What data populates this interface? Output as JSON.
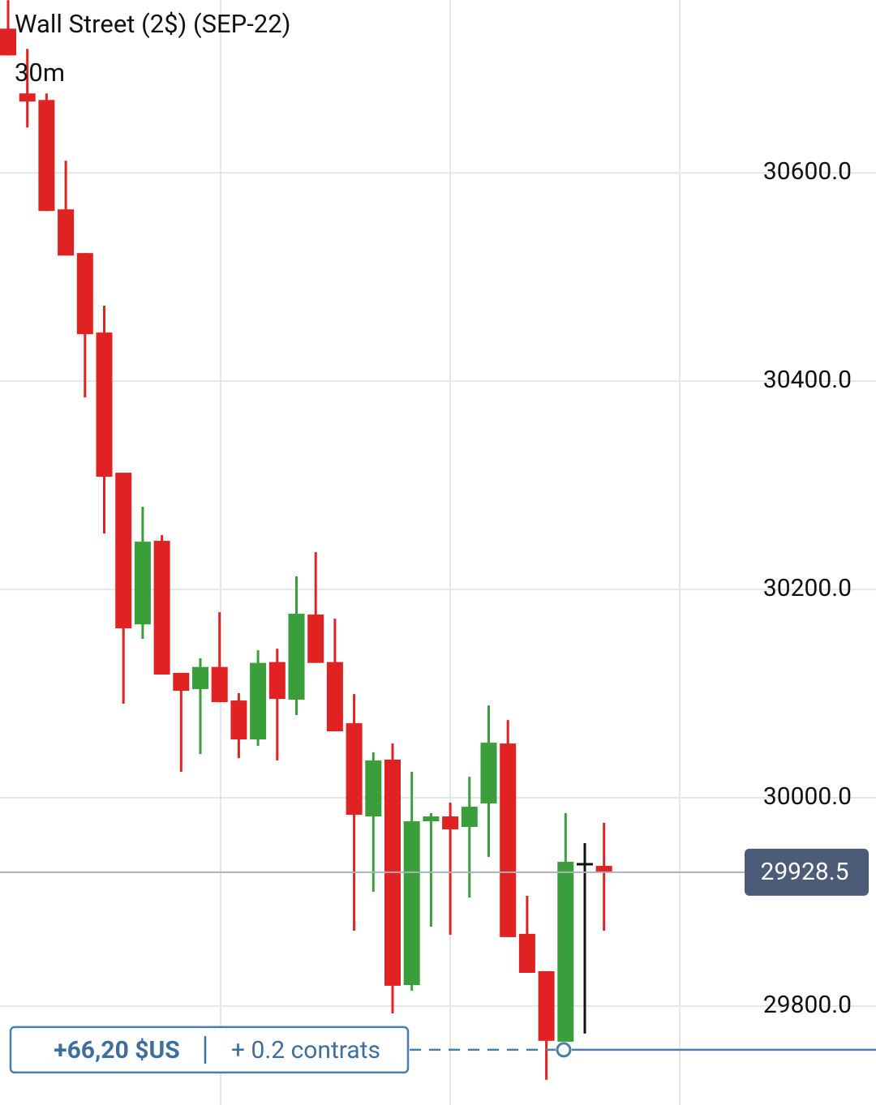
{
  "chart_data": {
    "type": "candlestick",
    "title": "Wall Street (2$) (SEP-22)",
    "interval": "30m",
    "open": [
      30738.5,
      30676.3,
      30670.0,
      30565.0,
      30523.0,
      30446.7,
      30312.1,
      30166.5,
      30246.7,
      30119.9,
      30104.3,
      30125.6,
      30093.4,
      30056.0,
      30130.3,
      30094.2,
      30175.9,
      30130.3,
      30071.6,
      29982.1,
      30036.6,
      29820.2,
      29977.4,
      29982.1,
      29972.0,
      29994.5,
      30052.1,
      29869.3,
      29833.5,
      29765.8,
      29936.2,
      29934.6
    ],
    "high": [
      30765.8,
      30719.0,
      30676.3,
      30611.7,
      30523.0,
      30472.4,
      30312.1,
      30279.4,
      30252.1,
      30119.9,
      30133.9,
      30178.2,
      30100.4,
      30141.6,
      30143.2,
      30212.5,
      30235.8,
      30172.0,
      30099.6,
      30043.6,
      30052.1,
      30024.9,
      29985.2,
      29995.3,
      30020.2,
      30088.7,
      30074.7,
      29905.8,
      29833.5,
      29985.2,
      29956.4,
      29975.9
    ],
    "low": [
      30712.8,
      30643.6,
      30563.4,
      30520.6,
      30384.4,
      30253.7,
      30090.3,
      30152.5,
      30118.3,
      30024.9,
      30042.0,
      30091.8,
      30038.1,
      30049.8,
      30035.8,
      30079.4,
      30129.5,
      30063.8,
      29872.4,
      29909.7,
      29793.0,
      29814.8,
      29876.3,
      29868.5,
      29904.3,
      29943.2,
      29866.2,
      29831.9,
      29729.2,
      29765.8,
      29773.6,
      29872.4
    ],
    "close": [
      30712.8,
      30668.5,
      30563.4,
      30520.6,
      30445.1,
      30308.2,
      30162.7,
      30245.9,
      30118.3,
      30102.7,
      30125.6,
      30091.8,
      30056.0,
      30129.5,
      30094.9,
      30176.7,
      30129.5,
      30063.8,
      29983.7,
      30035.8,
      29819.5,
      29977.4,
      29982.1,
      29969.7,
      29991.4,
      30052.9,
      29866.2,
      29831.9,
      29766.6,
      29938.5,
      29936.2,
      29928.4
    ],
    "up_color": "#3a9e3a",
    "down_color": "#e02222",
    "doji_color": "#111111",
    "ylim": [
      29705,
      30766
    ],
    "yticks": [
      {
        "value": 29800,
        "label": "29800.0"
      },
      {
        "value": 30000,
        "label": "30000.0"
      },
      {
        "value": 30200,
        "label": "30200.0"
      },
      {
        "value": 30400,
        "label": "30400.0"
      },
      {
        "value": 30600,
        "label": "30600.0"
      }
    ],
    "grid": true,
    "current_price": 29928.5,
    "position": {
      "price": 29758,
      "pnl": "+66,20 $US",
      "size": "+ 0.2 contrats"
    }
  }
}
